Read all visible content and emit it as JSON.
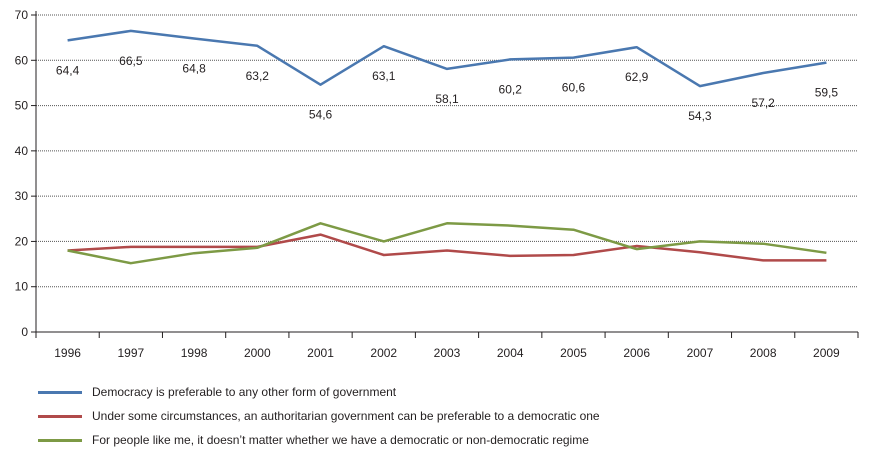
{
  "chart_data": {
    "type": "line",
    "title": "",
    "xlabel": "",
    "ylabel": "",
    "x": [
      "1996",
      "1997",
      "1998",
      "2000",
      "2001",
      "2002",
      "2003",
      "2004",
      "2005",
      "2006",
      "2007",
      "2008",
      "2009"
    ],
    "ylim": [
      0,
      70
    ],
    "yticks": [
      0,
      10,
      20,
      30,
      40,
      50,
      60,
      70
    ],
    "grid": "horizontal-dotted",
    "legend_position": "bottom",
    "series": [
      {
        "name": "Democracy is preferable to any other form of government",
        "color": "#4a78b0",
        "values": [
          64.4,
          66.5,
          64.8,
          63.2,
          54.6,
          63.1,
          58.1,
          60.2,
          60.6,
          62.9,
          54.3,
          57.2,
          59.5
        ],
        "labels": [
          "64,4",
          "66,5",
          "64,8",
          "63,2",
          "54,6",
          "63,1",
          "58,1",
          "60,2",
          "60,6",
          "62,9",
          "54,3",
          "57,2",
          "59,5"
        ]
      },
      {
        "name": "Under some circumstances, an authoritarian government can be preferable to a democratic one",
        "color": "#b04a4a",
        "values": [
          18,
          18.8,
          18.8,
          18.8,
          21.5,
          17,
          18,
          16.8,
          17,
          19,
          17.6,
          15.8,
          15.8
        ]
      },
      {
        "name": "For people like me, it doesn’t matter whether we have a democratic or non-democratic regime",
        "color": "#7d9a45",
        "values": [
          18,
          15.2,
          17.4,
          18.6,
          24,
          20,
          24,
          23.5,
          22.6,
          18.3,
          20,
          19.5,
          17.5
        ]
      }
    ]
  }
}
